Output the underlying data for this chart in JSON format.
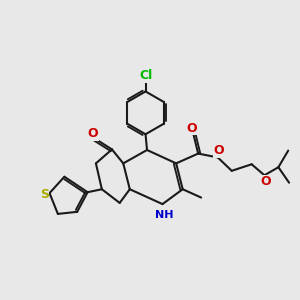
{
  "bg_color": "#e8e8e8",
  "bond_color": "#1a1a1a",
  "cl_color": "#00bb00",
  "o_color": "#cc0000",
  "n_color": "#0000cc",
  "s_color": "#aaaa00",
  "lw": 1.5,
  "fs": 8.5,
  "xlim": [
    0.0,
    10.0
  ],
  "ylim": [
    2.5,
    10.5
  ]
}
